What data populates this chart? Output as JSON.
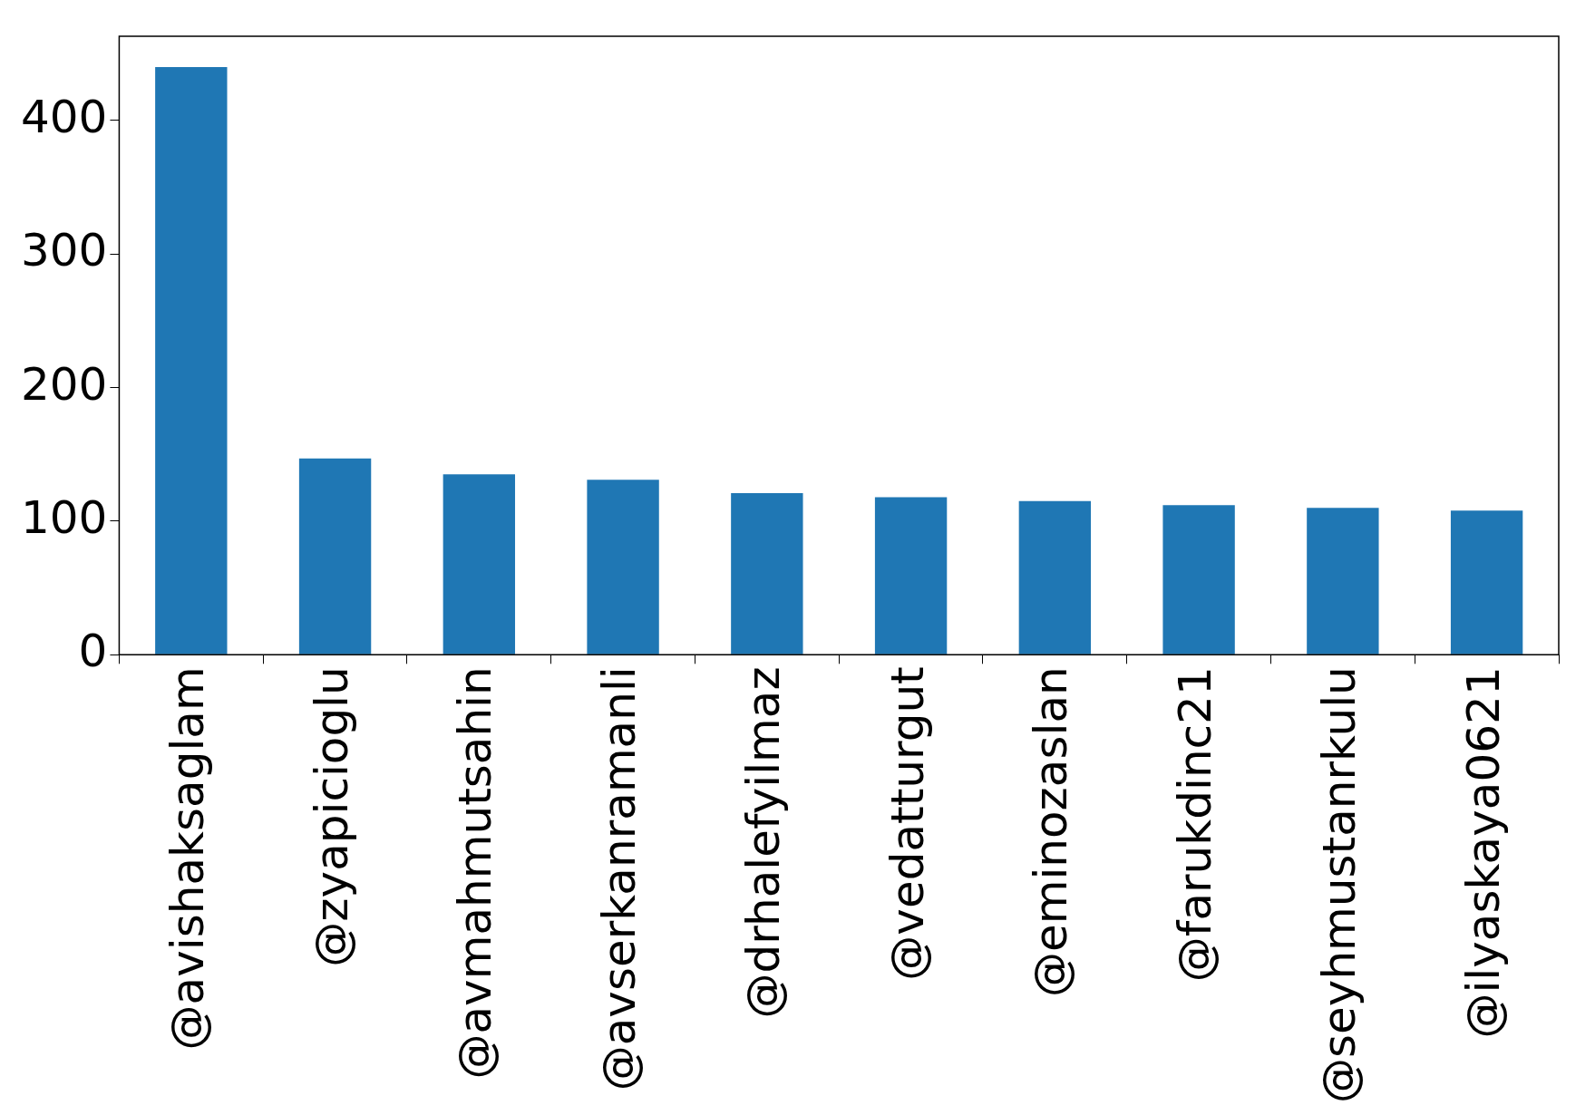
{
  "chart_data": {
    "type": "bar",
    "categories": [
      "@avishaksaglam",
      "@zyapicioglu",
      "@avmahmutsahin",
      "@avserkanramanli",
      "@drhalefyilmaz",
      "@vedatturgut",
      "@eminozaslan",
      "@farukdinc21",
      "@seyhmustanrkulu",
      "@ilyaskaya0621"
    ],
    "values": [
      440,
      147,
      135,
      131,
      121,
      118,
      115,
      112,
      110,
      108
    ],
    "color": "#1f77b4",
    "ylim": [
      0,
      463
    ],
    "yticks": [
      0,
      100,
      200,
      300,
      400
    ],
    "grid": false,
    "legend": false
  }
}
